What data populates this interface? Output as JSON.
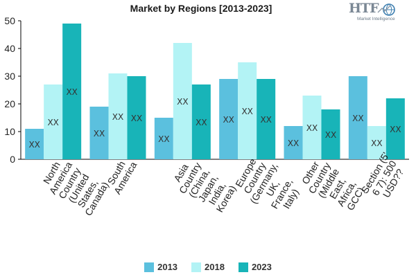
{
  "chart_data": {
    "type": "bar",
    "title": "Market by Regions [2013-2023]",
    "categories": [
      "North America Country (United States, Canada)",
      "South America",
      "Asia Country (China, Japan, India, Korea)",
      "Europe Country (Germany, UK, France, Italy)",
      "Other Country (Middle East, Africa, GCC)",
      "Section (5 6 7): 500 USD??"
    ],
    "category_lines": [
      [
        "North",
        "America",
        "Country",
        "(United",
        "States,",
        "Canada)"
      ],
      [
        "South",
        "America"
      ],
      [
        "Asia",
        "Country",
        "(China,",
        "Japan,",
        "India,",
        "Korea)"
      ],
      [
        "Europe",
        "Country",
        "(Germany,",
        "UK,",
        "France,",
        "Italy)"
      ],
      [
        "Other",
        "Country",
        "(Middle",
        "East,",
        "Africa,",
        "GCC)"
      ],
      [
        "Section (5'",
        "6 7): 500",
        "USD??"
      ]
    ],
    "series": [
      {
        "name": "2013",
        "color": "#5bc0de",
        "values": [
          11,
          19,
          15,
          29,
          12,
          30
        ],
        "labels": [
          "XX",
          "XX",
          "XX",
          "XX",
          "XX",
          "XX"
        ]
      },
      {
        "name": "2018",
        "color": "#b3f3f5",
        "values": [
          27,
          31,
          42,
          35,
          23,
          12
        ],
        "labels": [
          "XX",
          "XX",
          "XX",
          "XX",
          "XX",
          "XX"
        ]
      },
      {
        "name": "2023",
        "color": "#18b4b8",
        "values": [
          49,
          30,
          27,
          29,
          18,
          22
        ],
        "labels": [
          "XX",
          "XX",
          "XX",
          "XX",
          "XX",
          "XX"
        ]
      }
    ],
    "ylim": [
      0,
      50
    ],
    "yticks": [
      "0",
      "10",
      "20",
      "30",
      "40",
      "50"
    ],
    "xlabel": "",
    "ylabel": "",
    "grid": false,
    "legend_position": "bottom"
  },
  "logo": {
    "main": "HTF",
    "sub": "Market Intelligence"
  }
}
